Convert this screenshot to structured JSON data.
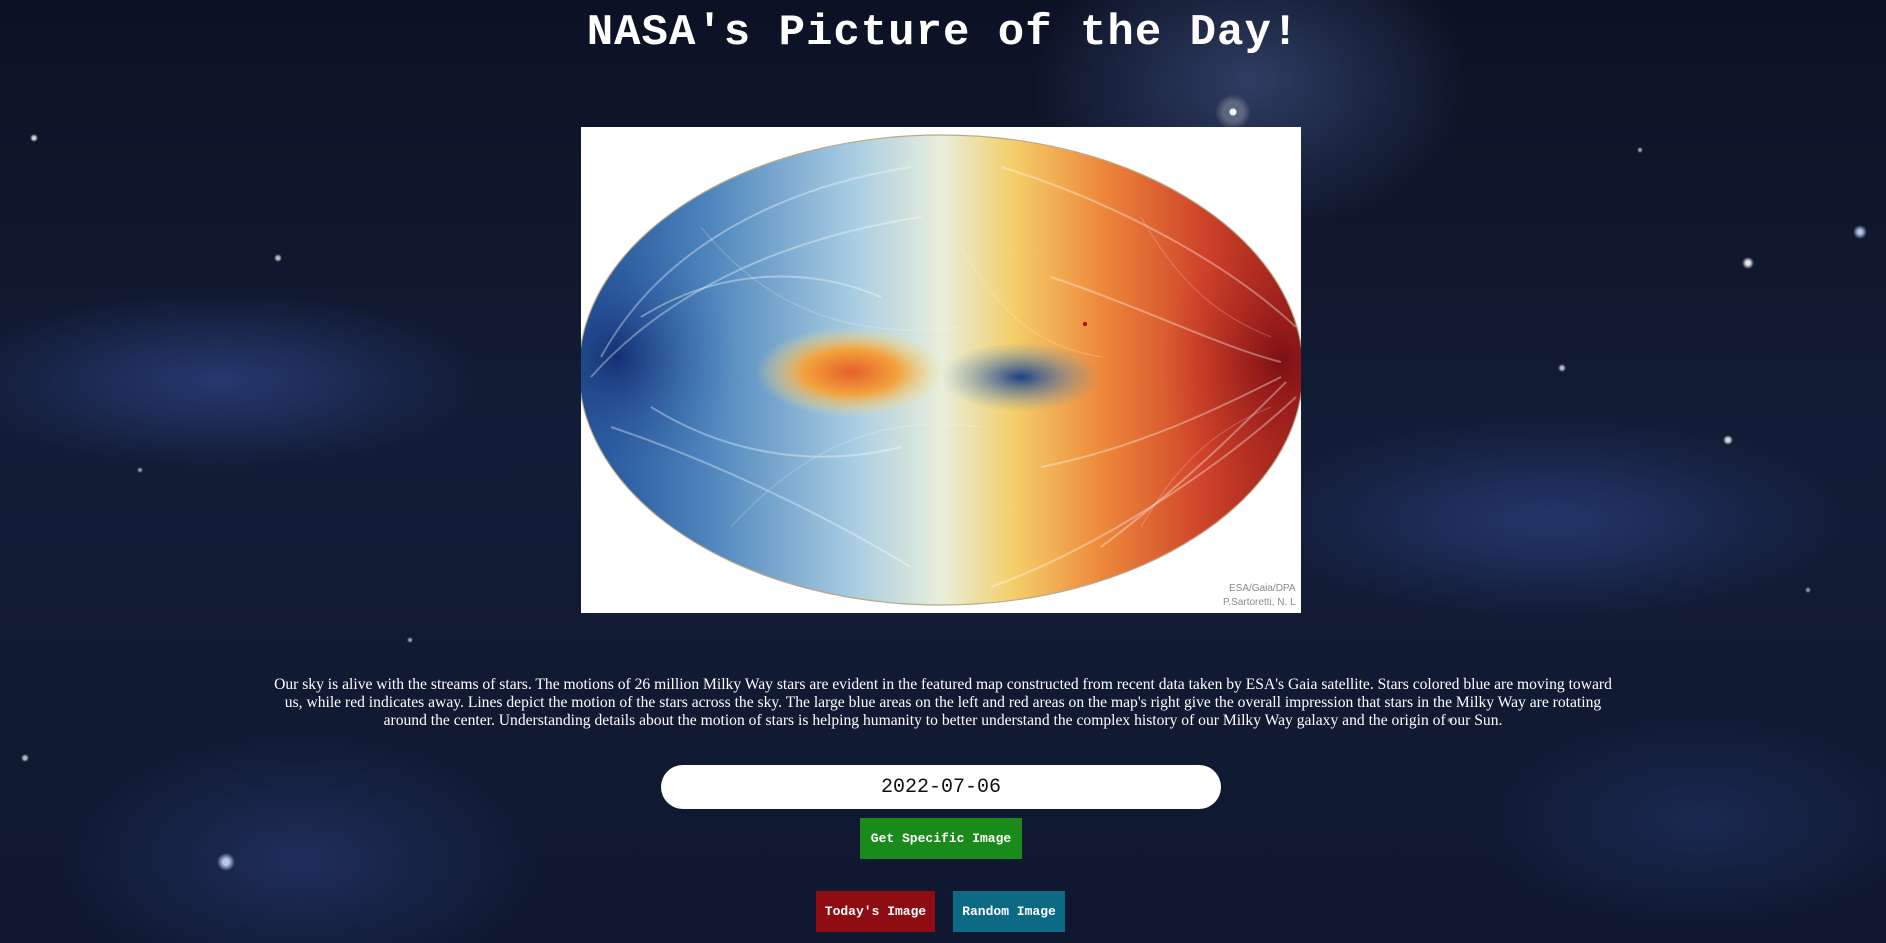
{
  "page": {
    "title": "NASA's Picture of the Day!"
  },
  "image": {
    "credit_line1": "ESA/Gaia/DPA",
    "credit_line2": "P.Sartoretti, N. L"
  },
  "explanation": "Our sky is alive with the streams of stars. The motions of 26 million Milky Way stars are evident in the featured map constructed from recent data taken by ESA's Gaia satellite. Stars colored blue are moving toward us, while red indicates away. Lines depict the motion of the stars across the sky. The large blue areas on the left and red areas on the map's right give the overall impression that stars in the Milky Way are rotating around the center. Understanding details about the motion of stars is helping humanity to better understand the complex history of our Milky Way galaxy and the origin of our Sun.",
  "date_input": {
    "value": "2022-07-06"
  },
  "buttons": {
    "specific_label": "Get Specific Image",
    "today_label": "Today's Image",
    "random_label": "Random Image"
  },
  "colors": {
    "specific_button": "#1a8a1a",
    "today_button": "#8f0c13",
    "random_button": "#0d6a85"
  }
}
